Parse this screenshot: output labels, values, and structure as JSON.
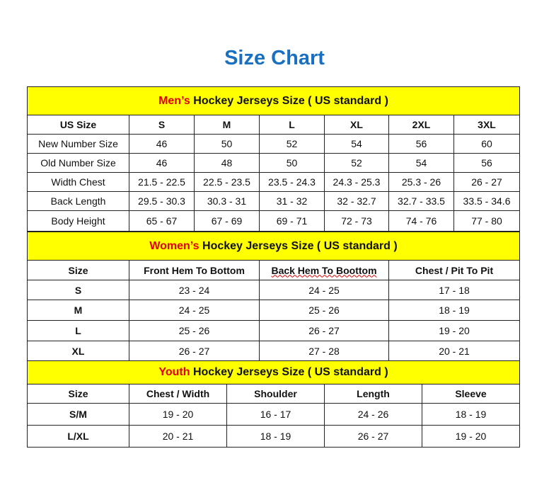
{
  "title": "Size Chart",
  "colors": {
    "title": "#1a70c0",
    "section_bg": "#ffff00",
    "accent_red": "#e00000"
  },
  "men": {
    "heading_accent": "Men’s",
    "heading_rest": " Hockey Jerseys Size ( US standard )",
    "columns": [
      "US Size",
      "S",
      "M",
      "L",
      "XL",
      "2XL",
      "3XL"
    ],
    "rows": [
      [
        "New Number Size",
        "46",
        "50",
        "52",
        "54",
        "56",
        "60"
      ],
      [
        "Old Number Size",
        "46",
        "48",
        "50",
        "52",
        "54",
        "56"
      ],
      [
        "Width Chest",
        "21.5 - 22.5",
        "22.5 - 23.5",
        "23.5 - 24.3",
        "24.3 - 25.3",
        "25.3 - 26",
        "26 - 27"
      ],
      [
        "Back Length",
        "29.5 - 30.3",
        "30.3 - 31",
        "31 - 32",
        "32 - 32.7",
        "32.7 - 33.5",
        "33.5 - 34.6"
      ],
      [
        "Body Height",
        "65 - 67",
        "67 - 69",
        "69 - 71",
        "72 - 73",
        "74 - 76",
        "77 - 80"
      ]
    ]
  },
  "women": {
    "heading_accent": "Women’s",
    "heading_rest": " Hockey Jerseys Size ( US standard )",
    "columns": [
      "Size",
      "Front Hem To Bottom",
      "Back Hem To Boottom",
      "Chest / Pit To Pit"
    ],
    "rows": [
      [
        "S",
        "23 - 24",
        "24 - 25",
        "17 - 18"
      ],
      [
        "M",
        "24 - 25",
        "25 - 26",
        "18 - 19"
      ],
      [
        "L",
        "25 - 26",
        "26 - 27",
        "19 - 20"
      ],
      [
        "XL",
        "26 - 27",
        "27 - 28",
        "20 - 21"
      ]
    ]
  },
  "youth": {
    "heading_accent": "Youth",
    "heading_rest": " Hockey Jerseys Size ( US standard )",
    "columns": [
      "Size",
      "Chest / Width",
      "Shoulder",
      "Length",
      "Sleeve"
    ],
    "rows": [
      [
        "S/M",
        "19 - 20",
        "16 - 17",
        "24 - 26",
        "18 - 19"
      ],
      [
        "L/XL",
        "20 - 21",
        "18 - 19",
        "26 - 27",
        "19 - 20"
      ]
    ]
  }
}
